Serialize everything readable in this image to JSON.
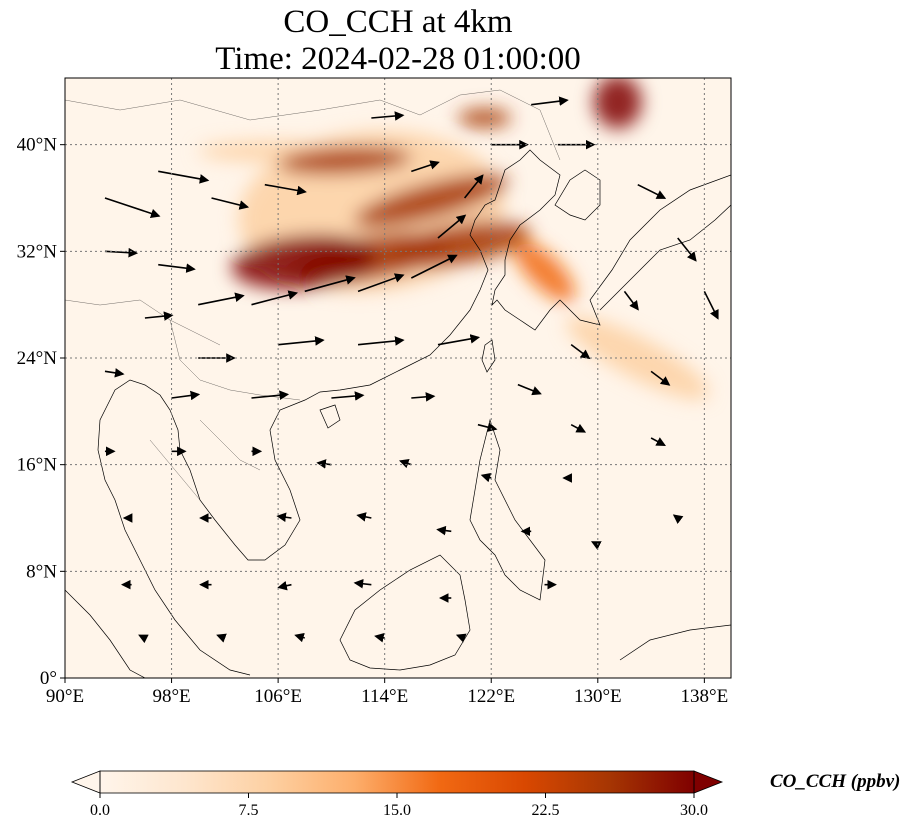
{
  "title": {
    "line1": "CO_CCH at 4km",
    "line2": "Time: 2024-02-28 01:00:00"
  },
  "map": {
    "extent": {
      "lon_min": 90,
      "lon_max": 140,
      "lat_min": 0,
      "lat_max": 45
    },
    "x_ticks": [
      {
        "value": 90,
        "label": "90°E"
      },
      {
        "value": 98,
        "label": "98°E"
      },
      {
        "value": 106,
        "label": "106°E"
      },
      {
        "value": 114,
        "label": "114°E"
      },
      {
        "value": 122,
        "label": "122°E"
      },
      {
        "value": 130,
        "label": "130°E"
      },
      {
        "value": 138,
        "label": "138°E"
      }
    ],
    "y_ticks": [
      {
        "value": 0,
        "label": "0°"
      },
      {
        "value": 8,
        "label": "8°N"
      },
      {
        "value": 16,
        "label": "16°N"
      },
      {
        "value": 24,
        "label": "24°N"
      },
      {
        "value": 32,
        "label": "32°N"
      },
      {
        "value": 40,
        "label": "40°N"
      }
    ],
    "gridlines": true,
    "background_color": "#fff5ea",
    "plumes": [
      {
        "lon": 108.0,
        "lat": 31.2,
        "rlon": 5.5,
        "rlat": 2.0,
        "rot": -5,
        "value": 30
      },
      {
        "lon": 113.0,
        "lat": 31.5,
        "rlon": 6.0,
        "rlat": 1.6,
        "rot": -10,
        "value": 26
      },
      {
        "lon": 119.5,
        "lat": 32.5,
        "rlon": 5.5,
        "rlat": 1.5,
        "rot": -10,
        "value": 27
      },
      {
        "lon": 111.0,
        "lat": 38.8,
        "rlon": 5.0,
        "rlat": 1.0,
        "rot": -3,
        "value": 24
      },
      {
        "lon": 117.5,
        "lat": 35.8,
        "rlon": 6.0,
        "rlat": 1.3,
        "rot": -15,
        "value": 25
      },
      {
        "lon": 121.5,
        "lat": 42.0,
        "rlon": 2.0,
        "rlat": 0.7,
        "rot": 0,
        "value": 26
      },
      {
        "lon": 131.5,
        "lat": 43.2,
        "rlon": 1.8,
        "rlat": 2.0,
        "rot": 0,
        "value": 28
      },
      {
        "lon": 126.0,
        "lat": 30.5,
        "rlon": 3.0,
        "rlat": 1.2,
        "rot": 45,
        "value": 18
      },
      {
        "lon": 133.0,
        "lat": 24.0,
        "rlon": 6.0,
        "rlat": 1.5,
        "rot": 28,
        "value": 10
      },
      {
        "lon": 113.0,
        "lat": 35.0,
        "rlon": 10.0,
        "rlat": 6.0,
        "rot": -5,
        "value": 8
      },
      {
        "lon": 106.0,
        "lat": 39.5,
        "rlon": 6.0,
        "rlat": 0.8,
        "rot": 0,
        "value": 7
      }
    ],
    "wind_vectors": [
      {
        "lon": 93.0,
        "lat": 36.0,
        "u": 6.0,
        "v": -2.0
      },
      {
        "lon": 97.0,
        "lat": 38.0,
        "u": 5.5,
        "v": -1.0
      },
      {
        "lon": 101.0,
        "lat": 36.0,
        "u": 4.0,
        "v": -1.0
      },
      {
        "lon": 105.0,
        "lat": 37.0,
        "u": 4.5,
        "v": -0.8
      },
      {
        "lon": 93.0,
        "lat": 32.0,
        "u": 3.5,
        "v": -0.2
      },
      {
        "lon": 97.0,
        "lat": 31.0,
        "u": 4.0,
        "v": -0.5
      },
      {
        "lon": 96.0,
        "lat": 27.0,
        "u": 3.0,
        "v": 0.3
      },
      {
        "lon": 100.0,
        "lat": 28.0,
        "u": 5.0,
        "v": 1.0
      },
      {
        "lon": 104.0,
        "lat": 28.0,
        "u": 5.0,
        "v": 1.3
      },
      {
        "lon": 108.0,
        "lat": 29.0,
        "u": 5.5,
        "v": 1.5
      },
      {
        "lon": 112.0,
        "lat": 29.0,
        "u": 5.0,
        "v": 1.8
      },
      {
        "lon": 116.0,
        "lat": 30.0,
        "u": 5.0,
        "v": 2.5
      },
      {
        "lon": 118.0,
        "lat": 33.0,
        "u": 3.0,
        "v": 2.5
      },
      {
        "lon": 120.0,
        "lat": 36.0,
        "u": 2.0,
        "v": 2.5
      },
      {
        "lon": 116.0,
        "lat": 38.0,
        "u": 3.0,
        "v": 1.0
      },
      {
        "lon": 113.0,
        "lat": 42.0,
        "u": 3.5,
        "v": 0.3
      },
      {
        "lon": 122.0,
        "lat": 40.0,
        "u": 4.0,
        "v": 0.0
      },
      {
        "lon": 125.0,
        "lat": 43.0,
        "u": 4.0,
        "v": 0.5
      },
      {
        "lon": 127.0,
        "lat": 40.0,
        "u": 4.0,
        "v": 0.0
      },
      {
        "lon": 133.0,
        "lat": 37.0,
        "u": 3.0,
        "v": -1.5
      },
      {
        "lon": 136.0,
        "lat": 33.0,
        "u": 2.0,
        "v": -2.5
      },
      {
        "lon": 138.0,
        "lat": 29.0,
        "u": 1.5,
        "v": -3.0
      },
      {
        "lon": 132.0,
        "lat": 29.0,
        "u": 1.5,
        "v": -2.0
      },
      {
        "lon": 128.0,
        "lat": 25.0,
        "u": 2.0,
        "v": -1.5
      },
      {
        "lon": 134.0,
        "lat": 23.0,
        "u": 2.0,
        "v": -1.5
      },
      {
        "lon": 124.0,
        "lat": 22.0,
        "u": 2.5,
        "v": -1.0
      },
      {
        "lon": 118.0,
        "lat": 25.0,
        "u": 4.5,
        "v": 0.8
      },
      {
        "lon": 112.0,
        "lat": 25.0,
        "u": 5.0,
        "v": 0.5
      },
      {
        "lon": 106.0,
        "lat": 25.0,
        "u": 5.0,
        "v": 0.5
      },
      {
        "lon": 100.0,
        "lat": 24.0,
        "u": 4.0,
        "v": 0.0
      },
      {
        "lon": 93.0,
        "lat": 23.0,
        "u": 2.0,
        "v": -0.3
      },
      {
        "lon": 98.0,
        "lat": 21.0,
        "u": 3.0,
        "v": 0.4
      },
      {
        "lon": 104.0,
        "lat": 21.0,
        "u": 4.0,
        "v": 0.4
      },
      {
        "lon": 110.0,
        "lat": 21.0,
        "u": 3.5,
        "v": 0.3
      },
      {
        "lon": 116.0,
        "lat": 21.0,
        "u": 2.5,
        "v": 0.2
      },
      {
        "lon": 121.0,
        "lat": 19.0,
        "u": 2.0,
        "v": -0.5
      },
      {
        "lon": 128.0,
        "lat": 19.0,
        "u": 1.5,
        "v": -0.8
      },
      {
        "lon": 134.0,
        "lat": 18.0,
        "u": 1.5,
        "v": -0.8
      },
      {
        "lon": 93.0,
        "lat": 17.0,
        "u": 1.0,
        "v": 0.0
      },
      {
        "lon": 98.0,
        "lat": 17.0,
        "u": 1.5,
        "v": 0.0
      },
      {
        "lon": 104.0,
        "lat": 17.0,
        "u": 1.0,
        "v": 0.0
      },
      {
        "lon": 110.0,
        "lat": 16.0,
        "u": -1.5,
        "v": 0.2
      },
      {
        "lon": 116.0,
        "lat": 16.0,
        "u": -1.2,
        "v": 0.4
      },
      {
        "lon": 122.0,
        "lat": 15.0,
        "u": -1.0,
        "v": 0.3
      },
      {
        "lon": 128.0,
        "lat": 15.0,
        "u": -0.8,
        "v": 0.0
      },
      {
        "lon": 95.0,
        "lat": 12.0,
        "u": -0.8,
        "v": 0.0
      },
      {
        "lon": 101.0,
        "lat": 12.0,
        "u": -1.2,
        "v": 0.0
      },
      {
        "lon": 107.0,
        "lat": 12.0,
        "u": -1.5,
        "v": 0.2
      },
      {
        "lon": 113.0,
        "lat": 12.0,
        "u": -1.5,
        "v": 0.3
      },
      {
        "lon": 119.0,
        "lat": 11.0,
        "u": -1.5,
        "v": 0.2
      },
      {
        "lon": 125.0,
        "lat": 11.0,
        "u": -1.0,
        "v": 0.0
      },
      {
        "lon": 95.0,
        "lat": 7.0,
        "u": -1.0,
        "v": 0.0
      },
      {
        "lon": 101.0,
        "lat": 7.0,
        "u": -1.2,
        "v": 0.0
      },
      {
        "lon": 107.0,
        "lat": 7.0,
        "u": -1.4,
        "v": -0.3
      },
      {
        "lon": 113.0,
        "lat": 7.0,
        "u": -1.8,
        "v": 0.2
      },
      {
        "lon": 119.0,
        "lat": 6.0,
        "u": -1.2,
        "v": 0.0
      },
      {
        "lon": 126.0,
        "lat": 7.0,
        "u": 1.2,
        "v": 0.0
      },
      {
        "lon": 96.0,
        "lat": 3.0,
        "u": -0.6,
        "v": 0.3
      },
      {
        "lon": 102.0,
        "lat": 3.0,
        "u": -0.8,
        "v": 0.3
      },
      {
        "lon": 108.0,
        "lat": 3.0,
        "u": -1.0,
        "v": 0.3
      },
      {
        "lon": 114.0,
        "lat": 3.0,
        "u": -1.0,
        "v": 0.2
      },
      {
        "lon": 120.0,
        "lat": 3.0,
        "u": -0.8,
        "v": 0.3
      },
      {
        "lon": 130.0,
        "lat": 10.0,
        "u": -0.6,
        "v": 0.3
      },
      {
        "lon": 136.0,
        "lat": 12.0,
        "u": -0.4,
        "v": 0.3
      }
    ]
  },
  "colorbar": {
    "title": "CO_CCH (ppbv)",
    "min": 0,
    "max": 30,
    "ticks": [
      {
        "value": 0,
        "label": "0.0"
      },
      {
        "value": 7.5,
        "label": "7.5"
      },
      {
        "value": 15,
        "label": "15.0"
      },
      {
        "value": 22.5,
        "label": "22.5"
      },
      {
        "value": 30,
        "label": "30.0"
      }
    ],
    "extend": "both",
    "colormap": [
      "#fff5eb",
      "#fee6ce",
      "#fdd0a2",
      "#fdae6b",
      "#f16913",
      "#d94801",
      "#a63603",
      "#7f0000"
    ]
  }
}
